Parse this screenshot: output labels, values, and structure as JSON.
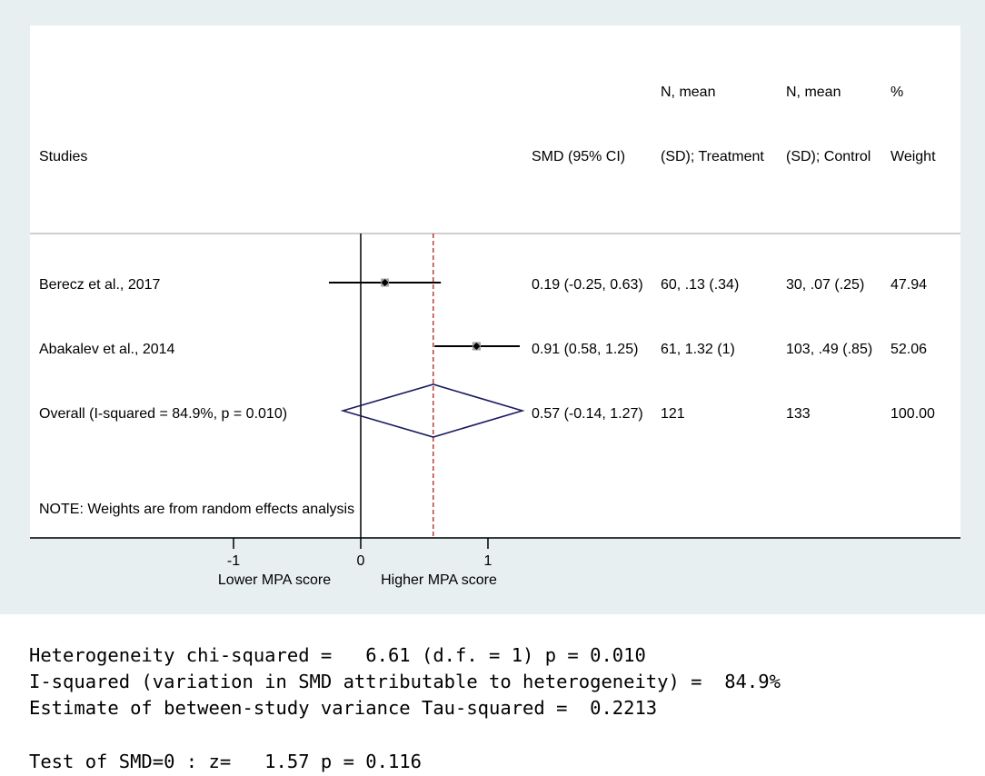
{
  "chart_data": {
    "type": "forest",
    "headers": {
      "studies": "Studies",
      "smd_ci": "SMD (95% CI)",
      "treatment_line1": "N, mean",
      "treatment_line2": "(SD); Treatment",
      "control_line1": "N, mean",
      "control_line2": "(SD); Control",
      "weight_line1": "%",
      "weight_line2": "Weight"
    },
    "studies": [
      {
        "label": "Berecz et al., 2017",
        "smd": 0.19,
        "lower": -0.25,
        "upper": 0.63,
        "ci_text": "0.19 (-0.25, 0.63)",
        "treatment": "60, .13 (.34)",
        "control": "30, .07 (.25)",
        "weight": 47.94,
        "weight_text": "47.94"
      },
      {
        "label": "Abakalev et al., 2014",
        "smd": 0.91,
        "lower": 0.58,
        "upper": 1.25,
        "ci_text": "0.91 (0.58, 1.25)",
        "treatment": "61, 1.32 (1)",
        "control": "103, .49 (.85)",
        "weight": 52.06,
        "weight_text": "52.06"
      }
    ],
    "overall": {
      "label": "Overall  (I-squared = 84.9%, p = 0.010)",
      "smd": 0.57,
      "lower": -0.14,
      "upper": 1.27,
      "ci_text": "0.57 (-0.14, 1.27)",
      "treatment": "121",
      "control": "133",
      "weight_text": "100.00"
    },
    "note": "NOTE: Weights are from random effects analysis",
    "x_ticks": [
      -1,
      0,
      1
    ],
    "x_tick_labels": [
      "-1",
      "0",
      "1"
    ],
    "x_domain": [
      -1.5,
      1.5
    ],
    "favours_left": "Lower MPA score",
    "favours_right": "Higher MPA score",
    "colors": {
      "panel": "#e8eff1",
      "plot_bg": "#ffffff",
      "diamond": "#1a1a5e",
      "ref_line": "#b22222",
      "marker_box": "#a0a0a0"
    }
  },
  "stats": {
    "line1": "Heterogeneity chi-squared =   6.61 (d.f. = 1) p = 0.010",
    "line2": "I-squared (variation in SMD attributable to heterogeneity) =  84.9%",
    "line3": "Estimate of between-study variance Tau-squared =  0.2213",
    "line4": "Test of SMD=0 : z=   1.57 p = 0.116"
  }
}
